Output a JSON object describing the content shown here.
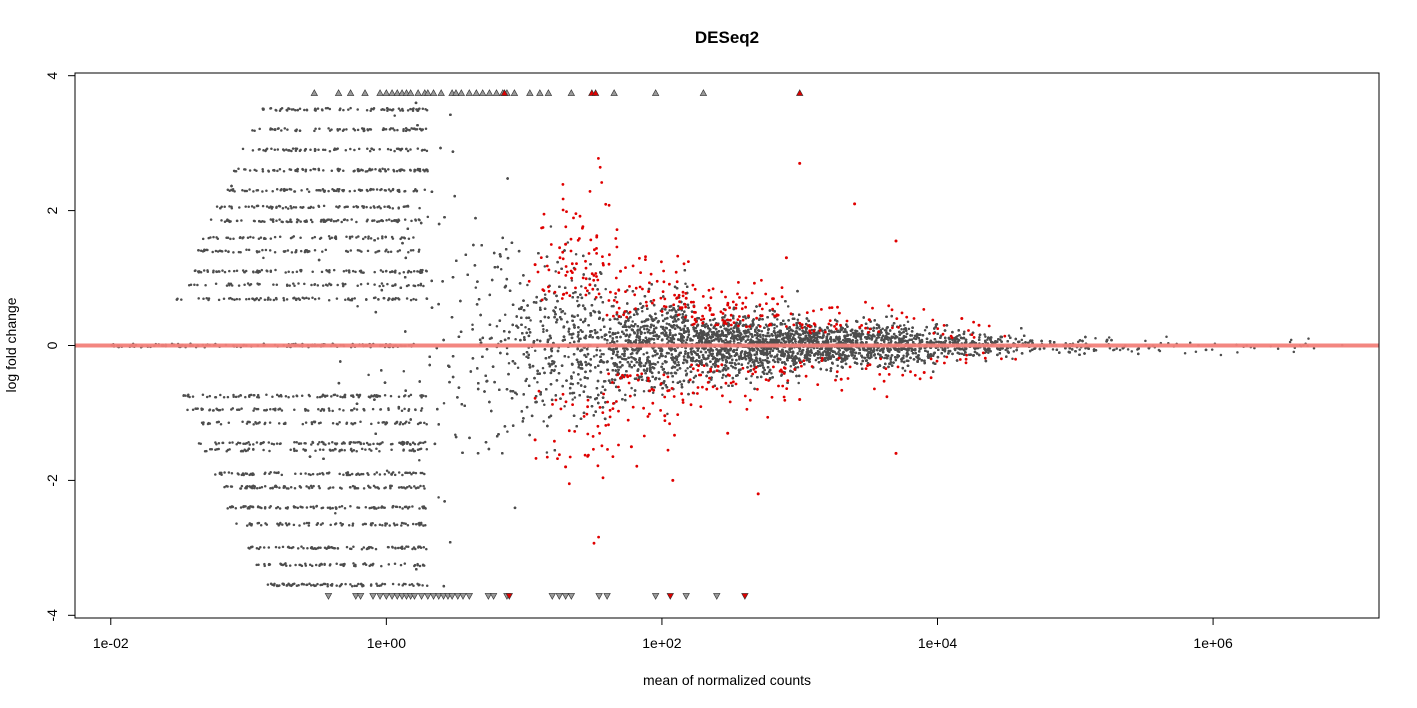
{
  "chart_data": {
    "type": "scatter",
    "title": "DESeq2",
    "xlabel": "mean of normalized counts",
    "ylabel": "log fold change",
    "x_scale": "log10",
    "xlim": [
      0.0055,
      16000000
    ],
    "ylim": [
      -4.04,
      4.04
    ],
    "x_ticks": [
      {
        "value": 0.01,
        "label": "1e-02"
      },
      {
        "value": 1,
        "label": "1e+00"
      },
      {
        "value": 100,
        "label": "1e+02"
      },
      {
        "value": 10000,
        "label": "1e+04"
      },
      {
        "value": 1000000,
        "label": "1e+06"
      }
    ],
    "y_ticks": [
      {
        "value": -4,
        "label": "-4"
      },
      {
        "value": -2,
        "label": "-2"
      },
      {
        "value": 0,
        "label": "0"
      },
      {
        "value": 2,
        "label": "2"
      },
      {
        "value": 4,
        "label": "4"
      }
    ],
    "reference_line": {
      "y": 0,
      "color": "#f28079"
    },
    "colors": {
      "not_significant": "#4d4d4d",
      "significant": "#e00000"
    },
    "series": [
      {
        "name": "",
        "color": "#4d4d4d",
        "points_sample": [
          [
            0.05,
            0.69
          ],
          [
            0.08,
            0.69
          ],
          [
            0.2,
            0.69
          ],
          [
            0.5,
            0.69
          ],
          [
            0.05,
            -0.75
          ],
          [
            0.1,
            -0.75
          ],
          [
            0.3,
            -0.75
          ],
          [
            0.6,
            -0.75
          ],
          [
            0.1,
            1.45
          ],
          [
            0.2,
            1.45
          ],
          [
            0.4,
            1.6
          ],
          [
            0.8,
            1.9
          ],
          [
            0.1,
            -1.45
          ],
          [
            0.2,
            -1.5
          ],
          [
            0.4,
            -1.9
          ],
          [
            0.8,
            -2.1
          ],
          [
            0.3,
            3.0
          ],
          [
            0.5,
            3.3
          ],
          [
            0.8,
            2.8
          ],
          [
            1.2,
            3.1
          ],
          [
            2.0,
            2.5
          ],
          [
            0.3,
            -3.0
          ],
          [
            0.6,
            -3.2
          ],
          [
            1.0,
            -3.4
          ],
          [
            2.0,
            -2.9
          ],
          [
            5,
            1.3
          ],
          [
            10,
            0.9
          ],
          [
            30,
            0.6
          ],
          [
            100,
            0.4
          ],
          [
            300,
            0.3
          ],
          [
            5,
            -1.2
          ],
          [
            10,
            -0.8
          ],
          [
            30,
            -0.55
          ],
          [
            100,
            -0.4
          ],
          [
            300,
            -0.3
          ],
          [
            1000,
            0.2
          ],
          [
            3000,
            0.15
          ],
          [
            10000,
            0.1
          ],
          [
            30000,
            0.05
          ],
          [
            1000,
            -0.2
          ],
          [
            3000,
            -0.15
          ],
          [
            10000,
            -0.1
          ],
          [
            30000,
            -0.06
          ],
          [
            100000,
            0.1
          ],
          [
            300000,
            -0.05
          ],
          [
            1000000,
            0.02
          ],
          [
            10000000,
            -0.03
          ]
        ]
      },
      {
        "name": "",
        "color": "#e00000",
        "points_sample": [
          [
            12,
            1.2
          ],
          [
            20,
            1.5
          ],
          [
            30,
            0.9
          ],
          [
            50,
            1.1
          ],
          [
            80,
            0.8
          ],
          [
            150,
            0.7
          ],
          [
            300,
            0.6
          ],
          [
            800,
            1.3
          ],
          [
            1000,
            2.7
          ],
          [
            2500,
            2.1
          ],
          [
            5000,
            1.55
          ],
          [
            12,
            -1.4
          ],
          [
            20,
            -1.8
          ],
          [
            60,
            -1.5
          ],
          [
            120,
            -2.0
          ],
          [
            300,
            -1.3
          ],
          [
            500,
            -2.2
          ],
          [
            1000,
            -0.8
          ],
          [
            2000,
            -0.5
          ],
          [
            5000,
            -1.6
          ],
          [
            8000,
            -0.4
          ],
          [
            15000,
            0.4
          ],
          [
            20000,
            0.3
          ]
        ]
      }
    ],
    "clipped_up_gray_x": [
      0.3,
      0.45,
      0.55,
      0.7,
      0.9,
      1.0,
      1.1,
      1.2,
      1.3,
      1.4,
      1.5,
      1.7,
      1.9,
      2.0,
      2.2,
      2.5,
      3.0,
      3.2,
      3.5,
      4.0,
      4.5,
      5.0,
      5.6,
      6.3,
      7.0,
      7.5,
      8.5,
      11,
      13,
      15,
      22,
      45,
      90,
      200
    ],
    "clipped_up_red_x": [
      7.2,
      31,
      33,
      1000
    ],
    "clipped_down_gray_x": [
      0.38,
      0.6,
      0.65,
      0.8,
      0.9,
      1.0,
      1.1,
      1.2,
      1.3,
      1.4,
      1.5,
      1.6,
      1.8,
      2.0,
      2.2,
      2.4,
      2.6,
      2.8,
      3.0,
      3.3,
      3.6,
      4.0,
      5.5,
      6.0,
      7.5,
      16,
      18,
      20,
      22,
      35,
      40,
      90,
      150,
      250
    ],
    "clipped_down_red_x": [
      7.8,
      115,
      400
    ]
  }
}
